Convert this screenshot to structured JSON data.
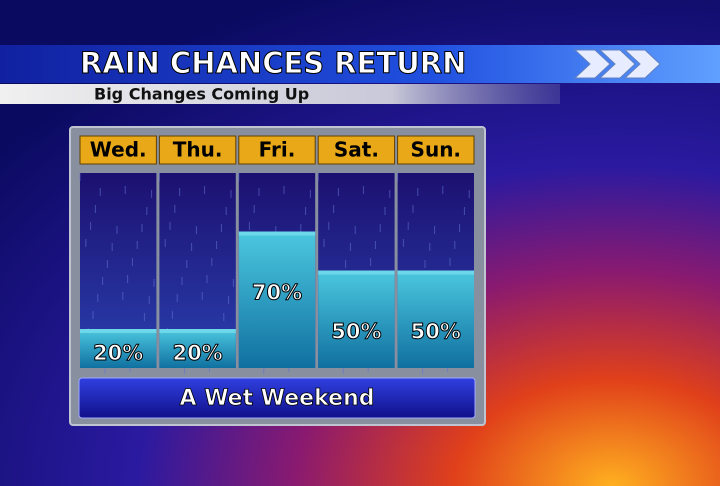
{
  "chart_data": {
    "type": "bar",
    "title": "RAIN CHANCES RETURN",
    "subtitle": "Big Changes Coming Up",
    "categories": [
      "Wed.",
      "Thu.",
      "Fri.",
      "Sat.",
      "Sun."
    ],
    "values": [
      20,
      20,
      70,
      50,
      50
    ],
    "value_labels": [
      "20%",
      "20%",
      "70%",
      "50%",
      "50%"
    ],
    "ylim": [
      0,
      100
    ],
    "color": "#2aa6c8",
    "footer": "A Wet Weekend"
  }
}
